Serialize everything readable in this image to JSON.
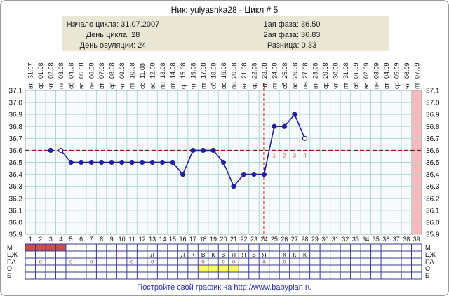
{
  "header": {
    "title": "Ник: yulyashka28 - Цикл # 5"
  },
  "info_box": {
    "left": [
      "Начало цикла: 31.07.2007",
      "День цикла: 28",
      "День овуляции: 24"
    ],
    "right": [
      "1ая фаза: 36.50",
      "2ая фаза: 36.83",
      "Разница: 0.33"
    ]
  },
  "chart_data": {
    "type": "line",
    "days": 39,
    "ylim": [
      35.9,
      37.1
    ],
    "ytick_step": 0.1,
    "grid": true,
    "dates": [
      "31.07",
      "01.08",
      "02.08",
      "03.08",
      "04.08",
      "05.08",
      "06.08",
      "07.08",
      "08.08",
      "09.08",
      "10.08",
      "11.08",
      "12.08",
      "13.08",
      "14.08",
      "15.08",
      "16.08",
      "17.08",
      "18.08",
      "19.08",
      "20.08",
      "21.08",
      "22.08",
      "23.08",
      "24.08",
      "25.08",
      "26.08",
      "27.08",
      "28.08",
      "29.08",
      "30.08",
      "31.08",
      "01.09",
      "02.09",
      "03.09",
      "04.09",
      "05.09",
      "06.09",
      "07.09"
    ],
    "weekdays": [
      "вт",
      "ср",
      "чт",
      "пт",
      "сб",
      "вс",
      "пн",
      "вт",
      "ср",
      "чт",
      "пт",
      "сб",
      "вс",
      "пн",
      "вт",
      "ср",
      "чт",
      "пт",
      "сб",
      "вс",
      "пн",
      "вт",
      "ср",
      "чт",
      "пт",
      "сб",
      "вс",
      "пн",
      "вт",
      "ср",
      "чт",
      "пт",
      "сб",
      "вс",
      "пн",
      "вт",
      "ср",
      "чт",
      "пт"
    ],
    "coverline": 36.6,
    "ovulation_line_day": 24,
    "dpo_labels": [
      {
        "day": 25,
        "label": "1"
      },
      {
        "day": 26,
        "label": "2"
      },
      {
        "day": 27,
        "label": "3"
      },
      {
        "day": 28,
        "label": "4"
      }
    ],
    "pink_column_day": 39,
    "series": [
      {
        "day": 3,
        "t": 36.6,
        "open": false,
        "connect": false
      },
      {
        "day": 4,
        "t": 36.6,
        "open": true,
        "connect": false
      },
      {
        "day": 5,
        "t": 36.5,
        "open": false,
        "connect": true
      },
      {
        "day": 6,
        "t": 36.5,
        "open": false,
        "connect": true
      },
      {
        "day": 7,
        "t": 36.5,
        "open": false,
        "connect": true
      },
      {
        "day": 8,
        "t": 36.5,
        "open": false,
        "connect": true
      },
      {
        "day": 9,
        "t": 36.5,
        "open": false,
        "connect": true
      },
      {
        "day": 10,
        "t": 36.5,
        "open": false,
        "connect": true
      },
      {
        "day": 11,
        "t": 36.5,
        "open": false,
        "connect": true
      },
      {
        "day": 12,
        "t": 36.5,
        "open": false,
        "connect": true
      },
      {
        "day": 13,
        "t": 36.5,
        "open": false,
        "connect": true
      },
      {
        "day": 14,
        "t": 36.5,
        "open": false,
        "connect": true
      },
      {
        "day": 15,
        "t": 36.5,
        "open": false,
        "connect": true
      },
      {
        "day": 16,
        "t": 36.4,
        "open": false,
        "connect": true
      },
      {
        "day": 17,
        "t": 36.6,
        "open": false,
        "connect": true
      },
      {
        "day": 18,
        "t": 36.6,
        "open": false,
        "connect": true
      },
      {
        "day": 19,
        "t": 36.6,
        "open": false,
        "connect": true
      },
      {
        "day": 20,
        "t": 36.5,
        "open": false,
        "connect": true
      },
      {
        "day": 21,
        "t": 36.3,
        "open": false,
        "connect": true
      },
      {
        "day": 22,
        "t": 36.4,
        "open": false,
        "connect": true
      },
      {
        "day": 23,
        "t": 36.4,
        "open": false,
        "connect": true
      },
      {
        "day": 24,
        "t": 36.4,
        "open": false,
        "connect": true
      },
      {
        "day": 25,
        "t": 36.8,
        "open": false,
        "connect": true
      },
      {
        "day": 26,
        "t": 36.8,
        "open": false,
        "connect": true
      },
      {
        "day": 27,
        "t": 36.9,
        "open": false,
        "connect": true
      },
      {
        "day": 28,
        "t": 36.7,
        "open": true,
        "connect": true
      }
    ]
  },
  "bottom_table": {
    "row_labels": [
      "М",
      "ЦЖ",
      "ПА",
      "О",
      "Б"
    ],
    "row_m_days": [
      1,
      2,
      3,
      4
    ],
    "row_cj_codes": [
      {
        "day": 13,
        "code": "Л"
      },
      {
        "day": 16,
        "code": "Л"
      },
      {
        "day": 17,
        "code": "К"
      },
      {
        "day": 18,
        "code": "В"
      },
      {
        "day": 19,
        "code": "К"
      },
      {
        "day": 20,
        "code": "В"
      },
      {
        "day": 21,
        "code": "Я"
      },
      {
        "day": 22,
        "code": "Я"
      },
      {
        "day": 23,
        "code": "В"
      },
      {
        "day": 24,
        "code": "Я"
      },
      {
        "day": 26,
        "code": "К"
      },
      {
        "day": 27,
        "code": "К"
      },
      {
        "day": 28,
        "code": "К"
      }
    ],
    "row_pa_days": [
      2,
      5,
      7,
      11,
      13,
      18,
      20,
      21,
      24,
      26
    ],
    "row_pa_symbol": "о",
    "row_o_days": [
      18,
      19,
      20,
      21
    ],
    "row_o_symbol": "–"
  },
  "footer": {
    "link_text": "Постройте свой график на http://www.babyplan.ru"
  },
  "colors": {
    "temp_line": "#2020a0",
    "coverline": "#991111",
    "ovulation_line": "#cc2211",
    "dpo_label": "#c07878",
    "grid": "#b4d4d4",
    "plot_border": "#8fb2b2",
    "plot_bg": "#f8fbfb",
    "pink_column": "#f6baba",
    "menses_fill": "#c94f4f",
    "yellow_cell": "#ffff55",
    "o_symbol_color": "#c87d00",
    "pa_symbol_color": "#a05555",
    "table_border": "#3a3a9a",
    "info_box_bg": "#ebe7d7",
    "footer_link": "#2b2bb5",
    "text": "#111111"
  }
}
